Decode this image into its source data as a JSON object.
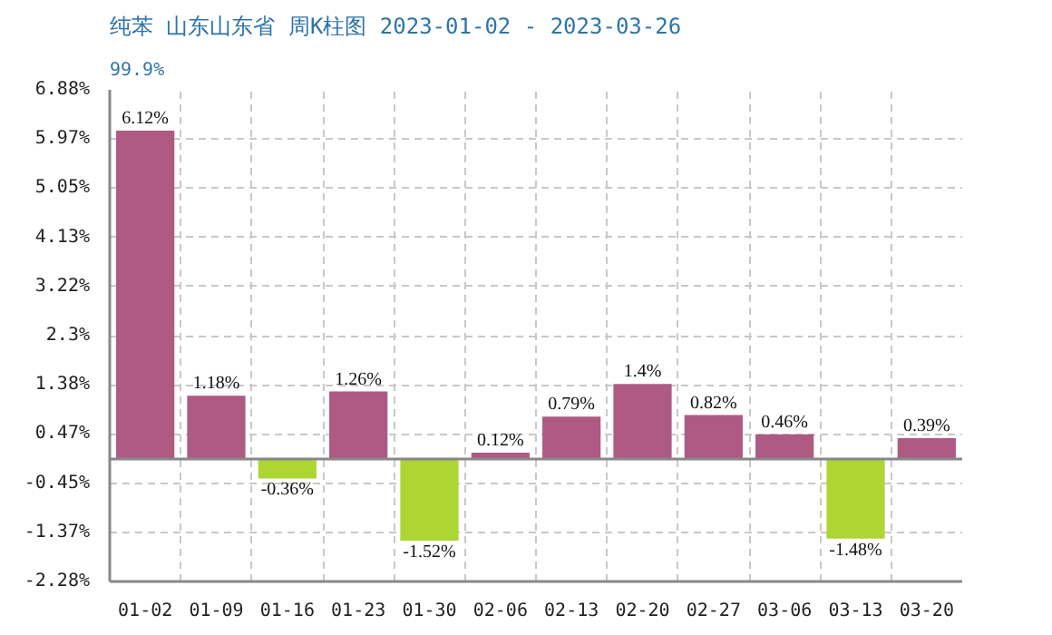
{
  "chart_data": {
    "type": "bar",
    "title": "纯苯 山东山东省 周K柱图 2023-01-02 - 2023-03-26",
    "subtitle": "99.9%",
    "categories": [
      "01-02",
      "01-09",
      "01-16",
      "01-23",
      "01-30",
      "02-06",
      "02-13",
      "02-20",
      "02-27",
      "03-06",
      "03-13",
      "03-20"
    ],
    "values": [
      6.12,
      1.18,
      -0.36,
      1.26,
      -1.52,
      0.12,
      0.79,
      1.4,
      0.82,
      0.46,
      -1.48,
      0.39
    ],
    "colors": [
      "#ae5a82",
      "#ae5a82",
      "#add633",
      "#ae5a82",
      "#add633",
      "#ae5a82",
      "#ae5a82",
      "#ae5a82",
      "#ae5a82",
      "#ae5a82",
      "#add633",
      "#ae5a82"
    ],
    "value_labels": [
      "6.12%",
      "1.18%",
      "-0.36%",
      "1.26%",
      "-1.52%",
      "0.12%",
      "0.79%",
      "1.4%",
      "0.82%",
      "0.46%",
      "-1.48%",
      "0.39%"
    ],
    "ylim": [
      -2.28,
      6.88
    ],
    "yticks": [
      {
        "value": -2.28,
        "label": "-2.28%"
      },
      {
        "value": -1.37,
        "label": "-1.37%"
      },
      {
        "value": -0.45,
        "label": "-0.45%"
      },
      {
        "value": 0.47,
        "label": "0.47%"
      },
      {
        "value": 1.38,
        "label": "1.38%"
      },
      {
        "value": 2.3,
        "label": "2.3%"
      },
      {
        "value": 3.22,
        "label": "3.22%"
      },
      {
        "value": 4.13,
        "label": "4.13%"
      },
      {
        "value": 5.05,
        "label": "5.05%"
      },
      {
        "value": 5.97,
        "label": "5.97%"
      },
      {
        "value": 6.88,
        "label": "6.88%"
      }
    ],
    "ref_lines": [
      {
        "axis": "y",
        "value": 0,
        "color": "#888888"
      }
    ],
    "grid": true
  }
}
